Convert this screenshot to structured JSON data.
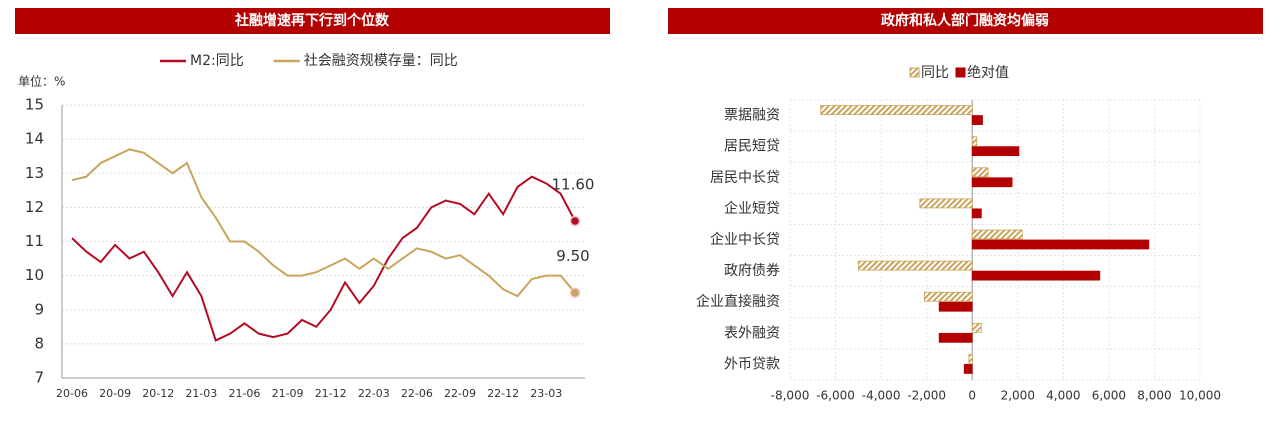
{
  "chart_data": [
    {
      "type": "line",
      "title": "社融增速再下行到个位数",
      "y_unit_label": "单位：%",
      "categories": [
        "20-06",
        null,
        null,
        "20-09",
        null,
        null,
        "20-12",
        null,
        null,
        "21-03",
        null,
        null,
        "21-06",
        null,
        null,
        "21-09",
        null,
        null,
        "21-12",
        null,
        null,
        "22-03",
        null,
        null,
        "22-06",
        null,
        null,
        "22-09",
        null,
        null,
        "22-12",
        null,
        null,
        "23-03",
        null,
        null
      ],
      "series": [
        {
          "name": "M2:同比",
          "color": "#b30d23",
          "values": [
            11.1,
            10.7,
            10.4,
            10.9,
            10.5,
            10.7,
            10.1,
            9.4,
            10.1,
            9.4,
            8.1,
            8.3,
            8.6,
            8.3,
            8.2,
            8.3,
            8.7,
            8.5,
            9.0,
            9.8,
            9.2,
            9.7,
            10.5,
            11.1,
            11.4,
            12.0,
            12.2,
            12.1,
            11.8,
            12.4,
            11.8,
            12.6,
            12.9,
            12.7,
            12.4,
            11.6
          ],
          "value_labels": [
            null,
            null,
            null,
            null,
            null,
            null,
            null,
            null,
            null,
            null,
            null,
            null,
            null,
            null,
            null,
            null,
            null,
            null,
            null,
            null,
            null,
            null,
            null,
            null,
            null,
            null,
            null,
            null,
            null,
            null,
            null,
            null,
            null,
            null,
            null,
            "11.60"
          ]
        },
        {
          "name": "社会融资规模存量：同比",
          "color": "#c9a45c",
          "values": [
            12.8,
            12.9,
            13.3,
            13.5,
            13.7,
            13.6,
            13.3,
            13.0,
            13.3,
            12.3,
            11.7,
            11.0,
            11.0,
            10.7,
            10.3,
            10.0,
            10.0,
            10.1,
            10.3,
            10.5,
            10.2,
            10.5,
            10.2,
            10.5,
            10.8,
            10.7,
            10.5,
            10.6,
            10.3,
            10.0,
            9.6,
            9.4,
            9.9,
            10.0,
            10.0,
            9.5
          ],
          "value_labels": [
            null,
            null,
            null,
            null,
            null,
            null,
            null,
            null,
            null,
            null,
            null,
            null,
            null,
            null,
            null,
            null,
            null,
            null,
            null,
            null,
            null,
            null,
            null,
            null,
            null,
            null,
            null,
            null,
            null,
            null,
            null,
            null,
            null,
            null,
            null,
            "9.50"
          ]
        }
      ],
      "ylim": [
        7,
        15
      ],
      "yticks": [
        7,
        8,
        9,
        10,
        11,
        12,
        13,
        14,
        15
      ],
      "grid": true
    },
    {
      "type": "bar",
      "title": "政府和私人部门融资均偏弱",
      "categories": [
        "票据融资",
        "居民短贷",
        "居民中长贷",
        "企业短贷",
        "企业中长贷",
        "政府债券",
        "企业直接融资",
        "表外融资",
        "外币贷款"
      ],
      "series": [
        {
          "name": "同比",
          "color": "#c9a45c",
          "pattern": "hatch",
          "values": [
            -6650,
            200,
            700,
            -2300,
            2200,
            -5000,
            -2100,
            400,
            -150
          ]
        },
        {
          "name": "绝对值",
          "color": "#b30000",
          "values": [
            450,
            2050,
            1750,
            400,
            7750,
            5600,
            -1450,
            -1450,
            -350
          ]
        }
      ],
      "xlim": [
        -8000,
        10000
      ],
      "xticks": [
        {
          "value": -8000,
          "label": "-8,000"
        },
        {
          "value": -6000,
          "label": "-6,000"
        },
        {
          "value": -4000,
          "label": "-4,000"
        },
        {
          "value": -2000,
          "label": "-2,000"
        },
        0,
        {
          "value": 2000,
          "label": "2,000"
        },
        {
          "value": 4000,
          "label": "4,000"
        },
        {
          "value": 6000,
          "label": "6,000"
        },
        {
          "value": 8000,
          "label": "8,000"
        },
        {
          "value": 10000,
          "label": "10,000"
        }
      ],
      "grid": true
    }
  ]
}
